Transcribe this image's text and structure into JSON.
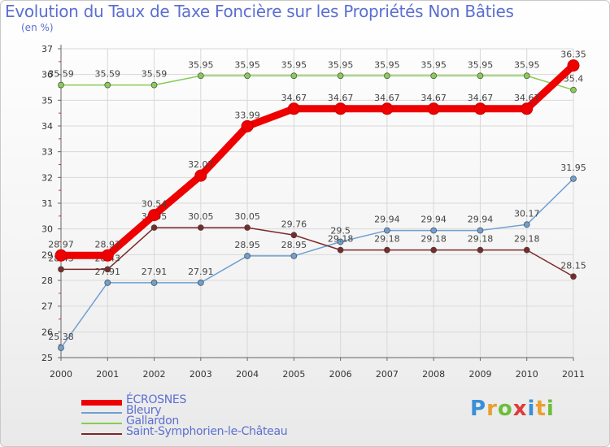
{
  "chart_data": {
    "type": "line",
    "title": "Evolution du Taux de Taxe Foncière sur les Propriétés Non Bâties",
    "unit": "(en %)",
    "x": [
      "2000",
      "2001",
      "2002",
      "2003",
      "2004",
      "2005",
      "2006",
      "2007",
      "2008",
      "2009",
      "2010",
      "2011"
    ],
    "ylim": [
      25,
      37
    ],
    "yticks": [
      25,
      26,
      27,
      28,
      29,
      30,
      31,
      32,
      33,
      34,
      35,
      36,
      37
    ],
    "series": [
      {
        "name": "ÉCROSNES",
        "color": "#ee0000",
        "values": [
          28.97,
          28.97,
          30.54,
          32.07,
          33.99,
          34.67,
          34.67,
          34.67,
          34.67,
          34.67,
          34.67,
          36.35
        ],
        "labels": [
          "28.97",
          "28.97",
          "30.54",
          "32.07",
          "33.99",
          "34.67",
          "34.67",
          "34.67",
          "34.67",
          "34.67",
          "34.67",
          "36.35"
        ]
      },
      {
        "name": "Bleury",
        "color": "#6fa0d0",
        "values": [
          25.38,
          27.91,
          27.91,
          27.91,
          28.95,
          28.95,
          29.5,
          29.94,
          29.94,
          29.94,
          30.17,
          31.95
        ],
        "labels": [
          "25.38",
          "27.91",
          "27.91",
          "27.91",
          "28.95",
          "28.95",
          "29.5",
          "29.94",
          "29.94",
          "29.94",
          "30.17",
          "31.95"
        ]
      },
      {
        "name": "Gallardon",
        "color": "#88cc55",
        "values": [
          35.59,
          35.59,
          35.59,
          35.95,
          35.95,
          35.95,
          35.95,
          35.95,
          35.95,
          35.95,
          35.95,
          35.4
        ],
        "labels": [
          "35.59",
          "35.59",
          "35.59",
          "35.95",
          "35.95",
          "35.95",
          "35.95",
          "35.95",
          "35.95",
          "35.95",
          "35.95",
          "35.4"
        ]
      },
      {
        "name": "Saint-Symphorien-le-Château",
        "color": "#7a2a2a",
        "values": [
          28.43,
          28.43,
          30.05,
          30.05,
          30.05,
          29.76,
          29.18,
          29.18,
          29.18,
          29.18,
          29.18,
          28.15
        ],
        "labels": [
          "28.43",
          "28.43",
          "30.05",
          "30.05",
          "30.05",
          "29.76",
          "29.18",
          "29.18",
          "29.18",
          "29.18",
          "29.18",
          "28.15"
        ]
      }
    ]
  },
  "logo": {
    "text": "Proxiti"
  }
}
